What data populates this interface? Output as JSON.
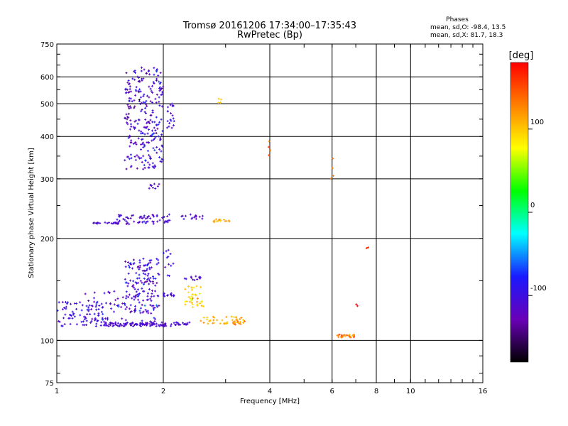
{
  "chart_data": {
    "type": "scatter",
    "title": "Tromsø 20161206 17:34:00–17:35:43",
    "subtitle": "RwPretec (Bp)",
    "xlabel": "Frequency [MHz]",
    "ylabel": "Stationary phase Virtual Height [km]",
    "x_scale": "log",
    "y_scale": "log",
    "xlim": [
      1,
      16
    ],
    "ylim": [
      75,
      750
    ],
    "x_ticks": [
      1,
      2,
      4,
      6,
      8,
      10,
      16
    ],
    "x_tick_labels": [
      "1",
      "2",
      "4",
      "6",
      "8",
      "10",
      "16"
    ],
    "y_ticks": [
      75,
      100,
      200,
      300,
      400,
      500,
      600,
      750
    ],
    "y_tick_labels": [
      "75",
      "100",
      "200",
      "300",
      "400",
      "500",
      "600",
      "750"
    ],
    "grid": true,
    "phase_info": {
      "title": "Phases",
      "line_o": "mean, sd,O: -98.4, 13.5",
      "line_x": "mean, sd,X:  81.7, 18.3"
    },
    "colorbar": {
      "label": "[deg]",
      "range": [
        -180,
        180
      ],
      "ticks": [
        100,
        0,
        -100
      ],
      "tick_labels": [
        "100",
        "0",
        "-100"
      ],
      "colormap": [
        "#000000",
        "#6a00b8",
        "#1a1aff",
        "#00ffff",
        "#00ff00",
        "#ffff00",
        "#ff8000",
        "#ff0000"
      ]
    },
    "series": [
      {
        "x": [
          1.0,
          1.35
        ],
        "y": [
          110,
          130
        ],
        "count": 80,
        "phase": -105,
        "phase_sd": 14
      },
      {
        "x": [
          1.35,
          2.05
        ],
        "y": [
          110,
          113
        ],
        "count": 100,
        "phase": -110,
        "phase_sd": 6
      },
      {
        "x": [
          2.05,
          2.4
        ],
        "y": [
          110,
          113
        ],
        "count": 20,
        "phase": -110,
        "phase_sd": 6
      },
      {
        "x": [
          1.2,
          1.9
        ],
        "y": [
          113,
          140
        ],
        "count": 60,
        "phase": -110,
        "phase_sd": 18
      },
      {
        "x": [
          1.55,
          1.95
        ],
        "y": [
          120,
          175
        ],
        "count": 140,
        "phase": -105,
        "phase_sd": 20
      },
      {
        "x": [
          2.0,
          2.15
        ],
        "y": [
          135,
          138
        ],
        "count": 15,
        "phase": -105,
        "phase_sd": 8
      },
      {
        "x": [
          2.0,
          2.15
        ],
        "y": [
          155,
          185
        ],
        "count": 12,
        "phase": -105,
        "phase_sd": 12
      },
      {
        "x": [
          2.3,
          2.55
        ],
        "y": [
          150,
          155
        ],
        "count": 12,
        "phase": -110,
        "phase_sd": 8
      },
      {
        "x": [
          2.3,
          2.6
        ],
        "y": [
          125,
          145
        ],
        "count": 35,
        "phase": 95,
        "phase_sd": 15
      },
      {
        "x": [
          2.55,
          3.4
        ],
        "y": [
          112,
          118
        ],
        "count": 40,
        "phase": 110,
        "phase_sd": 10
      },
      {
        "x": [
          3.1,
          3.4
        ],
        "y": [
          111,
          114
        ],
        "count": 8,
        "phase": 135,
        "phase_sd": 10
      },
      {
        "x": [
          1.25,
          1.48
        ],
        "y": [
          221,
          223
        ],
        "count": 20,
        "phase": -110,
        "phase_sd": 6
      },
      {
        "x": [
          1.48,
          2.1
        ],
        "y": [
          220,
          236
        ],
        "count": 65,
        "phase": -110,
        "phase_sd": 12
      },
      {
        "x": [
          2.25,
          2.6
        ],
        "y": [
          228,
          236
        ],
        "count": 15,
        "phase": -110,
        "phase_sd": 8
      },
      {
        "x": [
          2.75,
          3.1
        ],
        "y": [
          223,
          228
        ],
        "count": 15,
        "phase": 110,
        "phase_sd": 6
      },
      {
        "x": [
          1.8,
          1.95
        ],
        "y": [
          280,
          290
        ],
        "count": 10,
        "phase": -110,
        "phase_sd": 8
      },
      {
        "x": [
          1.55,
          2.0
        ],
        "y": [
          320,
          640
        ],
        "count": 260,
        "phase": -110,
        "phase_sd": 18
      },
      {
        "x": [
          2.05,
          2.15
        ],
        "y": [
          420,
          500
        ],
        "count": 20,
        "phase": -110,
        "phase_sd": 10
      },
      {
        "x": [
          2.85,
          2.95
        ],
        "y": [
          475,
          520
        ],
        "count": 4,
        "phase": 110,
        "phase_sd": 10
      },
      {
        "x": [
          3.95,
          4.02
        ],
        "y": [
          350,
          395
        ],
        "count": 4,
        "phase": 145,
        "phase_sd": 10
      },
      {
        "x": [
          5.95,
          6.05
        ],
        "y": [
          300,
          360
        ],
        "count": 4,
        "phase": 125,
        "phase_sd": 10
      },
      {
        "x": [
          6.2,
          6.95
        ],
        "y": [
          102,
          104
        ],
        "count": 25,
        "phase": 125,
        "phase_sd": 20
      },
      {
        "x": [
          7.5,
          7.6
        ],
        "y": [
          185,
          189
        ],
        "count": 2,
        "phase": 165,
        "phase_sd": 5
      },
      {
        "x": [
          7.0,
          7.1
        ],
        "y": [
          125,
          129
        ],
        "count": 2,
        "phase": 175,
        "phase_sd": 5
      }
    ]
  }
}
